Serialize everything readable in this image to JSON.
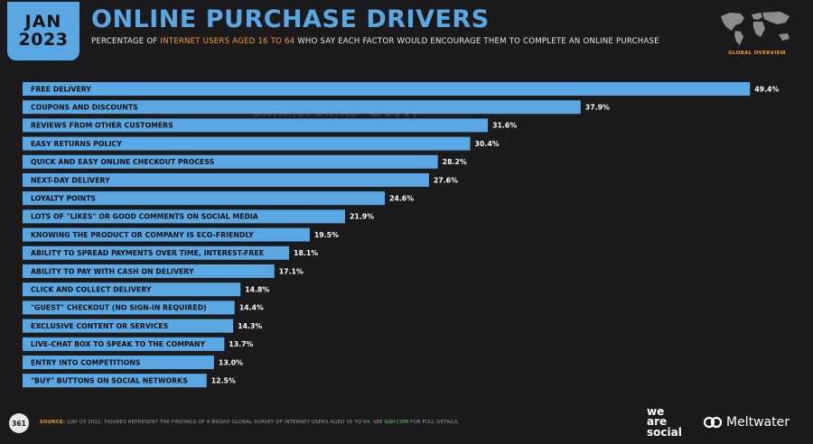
{
  "header": {
    "month": "JAN",
    "year": "2023",
    "title": "ONLINE PURCHASE DRIVERS",
    "subtitle_pre": "PERCENTAGE OF ",
    "subtitle_hl": "INTERNET USERS AGED 16 TO 64",
    "subtitle_post": " WHO SAY EACH FACTOR WOULD ENCOURAGE THEM TO COMPLETE AN ONLINE PURCHASE",
    "overview": "GLOBAL OVERVIEW"
  },
  "watermark": {
    "left": "DATAREPORTAL",
    "right": "GWI."
  },
  "chart_data": {
    "type": "bar",
    "orientation": "horizontal",
    "unit": "%",
    "xlim": [
      0,
      50
    ],
    "bar_color": "#5aa8e3",
    "categories": [
      "FREE DELIVERY",
      "COUPONS AND DISCOUNTS",
      "REVIEWS FROM OTHER CUSTOMERS",
      "EASY RETURNS POLICY",
      "QUICK AND EASY ONLINE CHECKOUT PROCESS",
      "NEXT-DAY DELIVERY",
      "LOYALTY POINTS",
      "LOTS OF \"LIKES\" OR GOOD COMMENTS ON SOCIAL MEDIA",
      "KNOWING THE PRODUCT OR COMPANY IS ECO-FRIENDLY",
      "ABILITY TO SPREAD PAYMENTS OVER TIME, INTEREST-FREE",
      "ABILITY TO PAY WITH CASH ON DELIVERY",
      "CLICK AND COLLECT DELIVERY",
      "\"GUEST\" CHECKOUT (NO SIGN-IN REQUIRED)",
      "EXCLUSIVE CONTENT OR SERVICES",
      "LIVE-CHAT BOX TO SPEAK TO THE COMPANY",
      "ENTRY INTO COMPETITIONS",
      "\"BUY\" BUTTONS ON SOCIAL NETWORKS"
    ],
    "values": [
      49.4,
      37.9,
      31.6,
      30.4,
      28.2,
      27.6,
      24.6,
      21.9,
      19.5,
      18.1,
      17.1,
      14.8,
      14.4,
      14.3,
      13.7,
      13.0,
      12.5
    ],
    "labels": [
      "49.4%",
      "37.9%",
      "31.6%",
      "30.4%",
      "28.2%",
      "27.6%",
      "24.6%",
      "21.9%",
      "19.5%",
      "18.1%",
      "17.1%",
      "14.8%",
      "14.4%",
      "14.3%",
      "13.7%",
      "13.0%",
      "12.5%"
    ]
  },
  "footer": {
    "page": "361",
    "source_label": "SOURCE:",
    "source_text": " GWI Q3 2022. FIGURES REPRESENT THE FINDINGS OF A BROAD GLOBAL SURVEY OF INTERNET USERS AGED 16 TO 64. SEE ",
    "source_link": "GWI.COM",
    "source_tail": " FOR FULL DETAILS.",
    "brand1_line1": "we",
    "brand1_line2": "are",
    "brand1_line3": "social",
    "brand2": "Meltwater"
  }
}
